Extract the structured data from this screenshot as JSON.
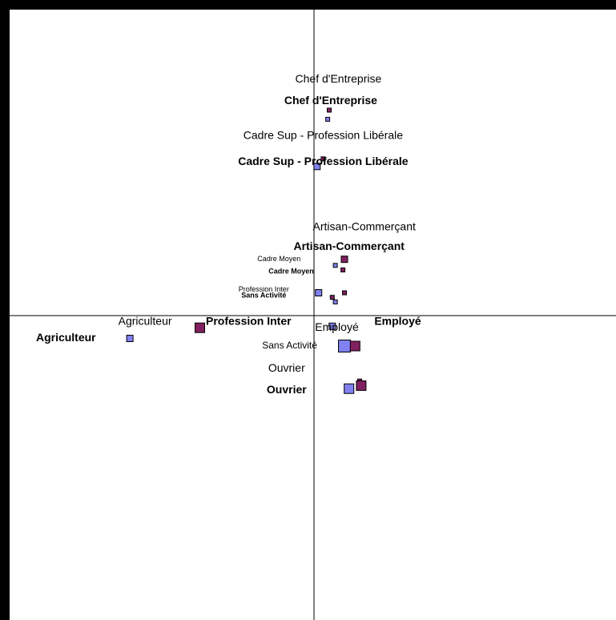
{
  "colors": {
    "series_light": "#8080f0",
    "series_dark": "#802060",
    "axis": "#000000",
    "frame": "#000000",
    "background": "#ffffff"
  },
  "chart_data": {
    "type": "scatter",
    "title": "",
    "xlabel": "",
    "ylabel": "",
    "grid": false,
    "legend": "none",
    "xlim": [
      -1.0,
      1.0
    ],
    "ylim": [
      -1.0,
      1.0
    ],
    "series": [
      {
        "color": "#8080f0",
        "points": [
          {
            "label": "Chef d'Entreprise",
            "x": 0.045,
            "y": 0.645,
            "size": 5
          },
          {
            "label": "Cadre Sup - Profession Libérale",
            "x": 0.01,
            "y": 0.49,
            "size": 8
          },
          {
            "label": "Cadre Moyen",
            "x": 0.07,
            "y": 0.165,
            "size": 5
          },
          {
            "label": "Sans Activité",
            "x": 0.015,
            "y": 0.075,
            "size": 8
          },
          {
            "label": "Profession Inter",
            "x": 0.07,
            "y": 0.045,
            "size": 5
          },
          {
            "label": "Employé",
            "x": 0.06,
            "y": -0.035,
            "size": 8
          },
          {
            "label": "Agriculteur",
            "x": -0.605,
            "y": -0.075,
            "size": 8
          },
          {
            "label": "Sans Activité",
            "x": 0.1,
            "y": -0.1,
            "size": 15
          },
          {
            "label": "Ouvrier",
            "x": 0.115,
            "y": -0.24,
            "size": 12
          }
        ]
      },
      {
        "color": "#802060",
        "points": [
          {
            "label": "Chef d'Entreprise",
            "x": 0.05,
            "y": 0.675,
            "size": 5
          },
          {
            "label": "Cadre Sup - Profession Libérale",
            "x": 0.03,
            "y": 0.515,
            "size": 5
          },
          {
            "label": "Artisan-Commerçant",
            "x": 0.1,
            "y": 0.185,
            "size": 8
          },
          {
            "label": "Cadre Moyen",
            "x": 0.095,
            "y": 0.15,
            "size": 5
          },
          {
            "label": "Sans Activité",
            "x": 0.1,
            "y": 0.075,
            "size": 5
          },
          {
            "label": "Profession Inter",
            "x": 0.06,
            "y": 0.06,
            "size": 5
          },
          {
            "label": "Agriculteur",
            "x": -0.375,
            "y": -0.04,
            "size": 12
          },
          {
            "label": "Employé",
            "x": 0.135,
            "y": -0.1,
            "size": 12
          },
          {
            "label": "Ouvrier",
            "x": 0.15,
            "y": -0.215,
            "size": 5
          },
          {
            "label": "Ouvrier",
            "x": 0.155,
            "y": -0.23,
            "size": 12
          }
        ]
      }
    ],
    "annotations": [
      {
        "text": "Chef d'Entreprise",
        "x": 0.08,
        "y": 0.775,
        "size": 14,
        "bold": false
      },
      {
        "text": "Chef d'Entreprise",
        "x": 0.055,
        "y": 0.705,
        "size": 14,
        "bold": true
      },
      {
        "text": "Cadre Sup - Profession Libérale",
        "x": 0.03,
        "y": 0.59,
        "size": 14,
        "bold": false
      },
      {
        "text": "Cadre Sup - Profession Libérale",
        "x": 0.03,
        "y": 0.505,
        "size": 14,
        "bold": true
      },
      {
        "text": "Artisan-Commerçant",
        "x": 0.165,
        "y": 0.29,
        "size": 14,
        "bold": false
      },
      {
        "text": "Artisan-Commerçant",
        "x": 0.115,
        "y": 0.225,
        "size": 14,
        "bold": true
      },
      {
        "text": "Cadre Moyen",
        "x": -0.115,
        "y": 0.185,
        "size": 9,
        "bold": false
      },
      {
        "text": "Cadre Moyen",
        "x": -0.075,
        "y": 0.145,
        "size": 9,
        "bold": true
      },
      {
        "text": "Profession Inter",
        "x": -0.165,
        "y": 0.085,
        "size": 9,
        "bold": false
      },
      {
        "text": "Sans Activité",
        "x": -0.165,
        "y": 0.065,
        "size": 9,
        "bold": true
      },
      {
        "text": "Agriculteur",
        "x": -0.555,
        "y": -0.02,
        "size": 14,
        "bold": false
      },
      {
        "text": "Profession Inter",
        "x": -0.215,
        "y": -0.02,
        "size": 14,
        "bold": true
      },
      {
        "text": "Employé",
        "x": 0.275,
        "y": -0.02,
        "size": 14,
        "bold": true
      },
      {
        "text": "Employé",
        "x": 0.075,
        "y": -0.04,
        "size": 14,
        "bold": false
      },
      {
        "text": "Agriculteur",
        "x": -0.815,
        "y": -0.075,
        "size": 14,
        "bold": true
      },
      {
        "text": "Sans Activité",
        "x": -0.08,
        "y": -0.1,
        "size": 12,
        "bold": false
      },
      {
        "text": "Ouvrier",
        "x": -0.09,
        "y": -0.175,
        "size": 14,
        "bold": false
      },
      {
        "text": "Ouvrier",
        "x": -0.09,
        "y": -0.245,
        "size": 14,
        "bold": true
      }
    ]
  }
}
